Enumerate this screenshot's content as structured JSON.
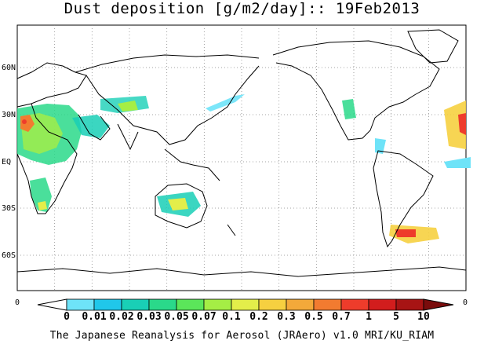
{
  "title": "Dust deposition [g/m2/day]:: 19Feb2013",
  "latitude_labels": [
    "60N",
    "30N",
    "EQ",
    "30S",
    "60S"
  ],
  "lon_edge_labels": [
    "0",
    "0"
  ],
  "colorbar": {
    "labels": [
      "0",
      "0.01",
      "0.02",
      "0.03",
      "0.05",
      "0.07",
      "0.1",
      "0.2",
      "0.3",
      "0.5",
      "0.7",
      "1",
      "5",
      "10"
    ],
    "colors": [
      "#ffffff",
      "#6ee3f8",
      "#20c7ea",
      "#19cfb6",
      "#2ad98a",
      "#5be65a",
      "#a5ee45",
      "#e3ee4a",
      "#f6d040",
      "#f3a93a",
      "#f27b30",
      "#ee3c2b",
      "#d21d1d",
      "#a71414",
      "#7a0c0c"
    ]
  },
  "footer": "The Japanese Reanalysis for Aerosol (JRAero) v1.0 MRI/KU_RIAM"
}
